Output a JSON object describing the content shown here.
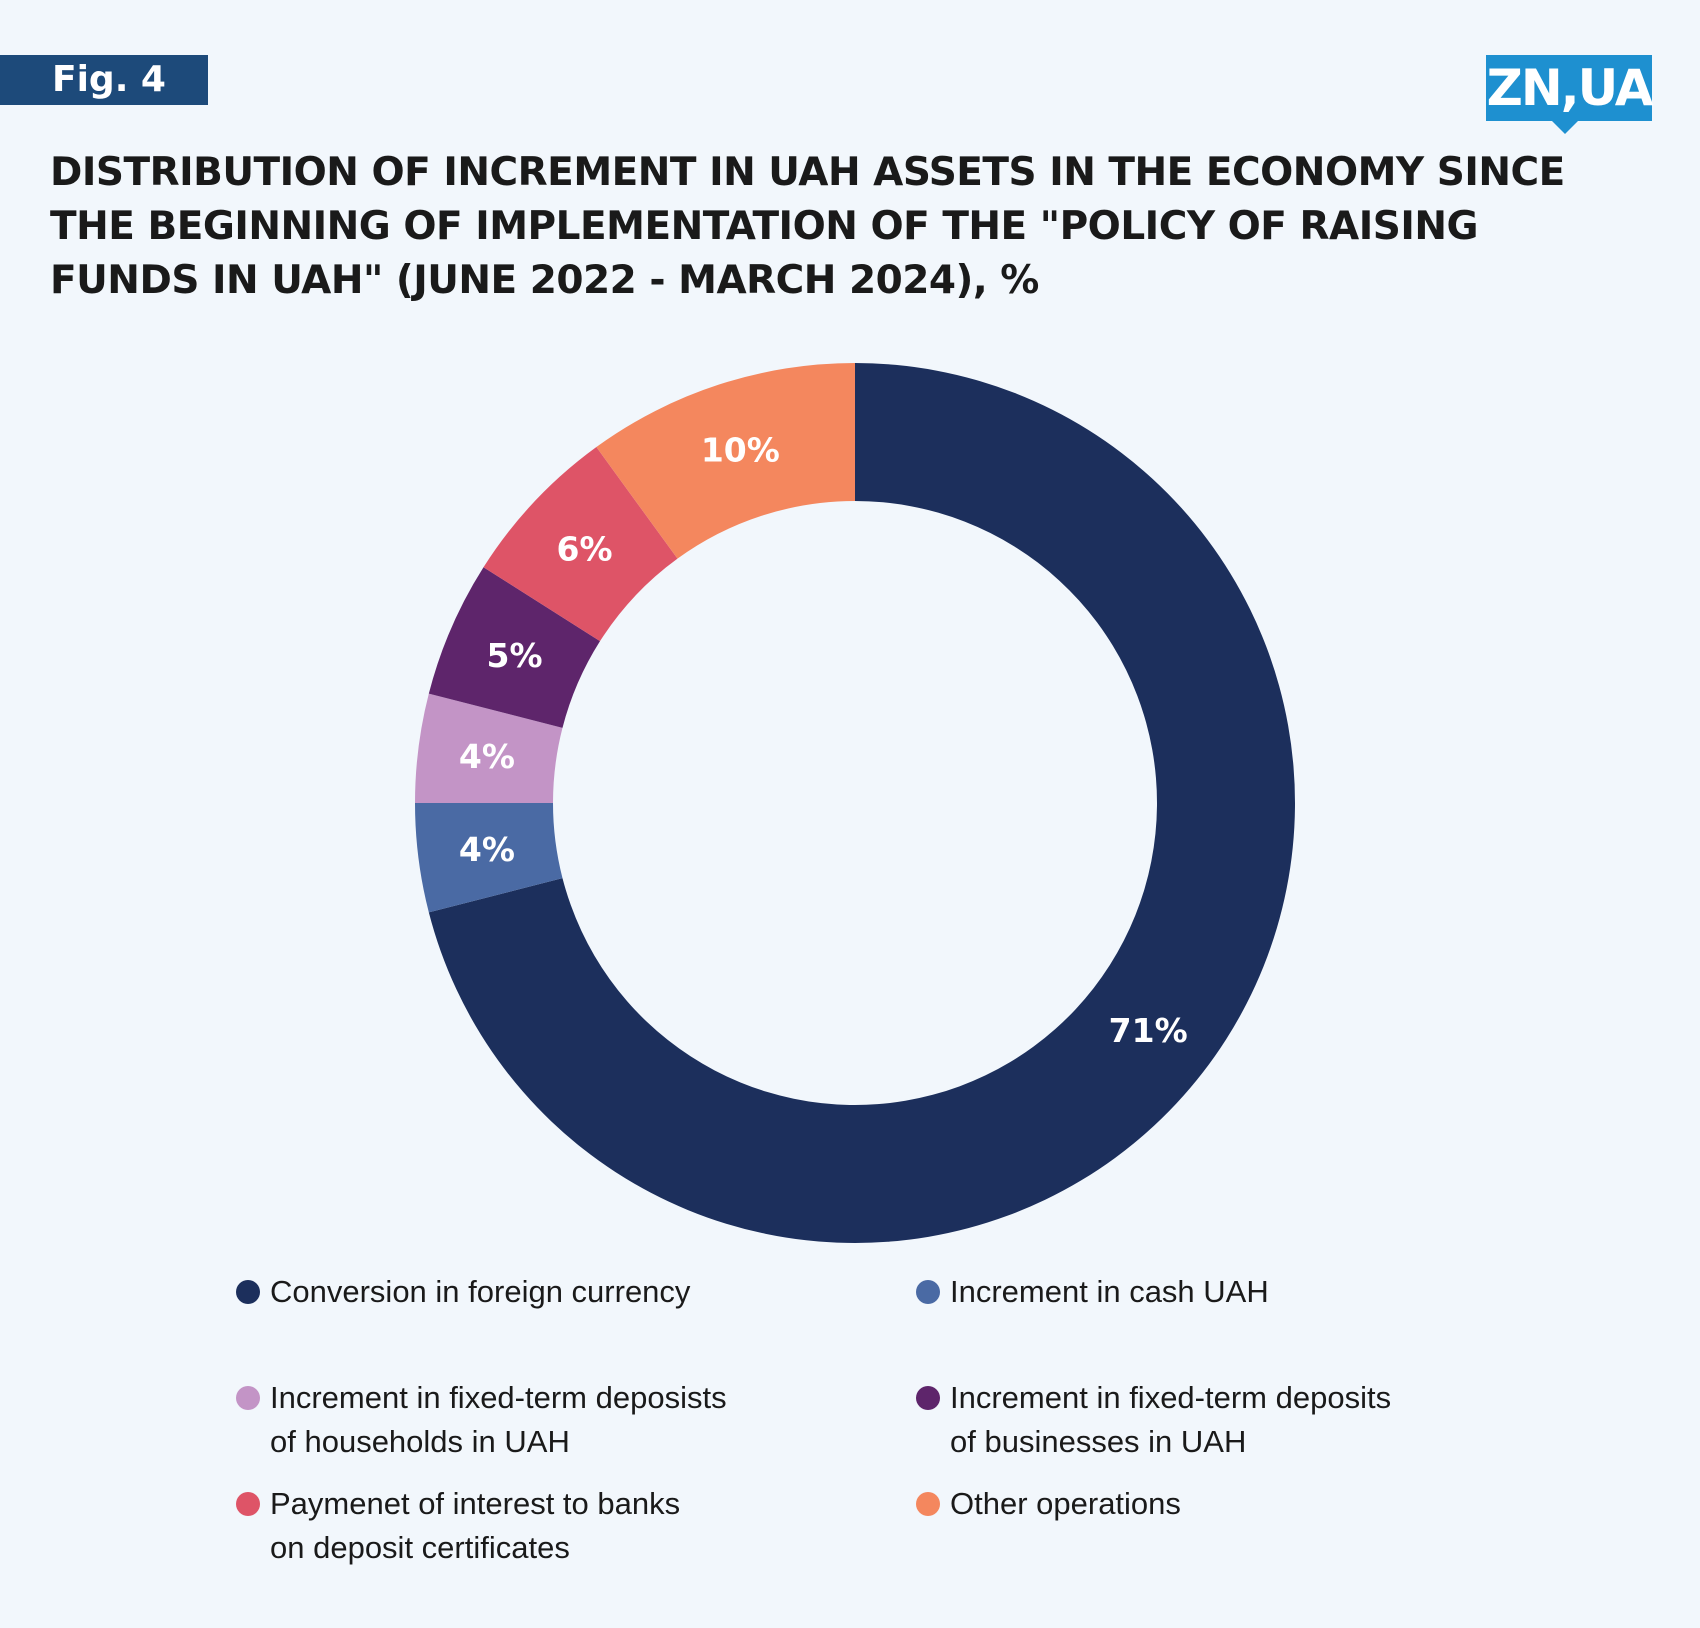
{
  "header": {
    "fig_label": "Fig. 4",
    "logo_text": "ZN,UA"
  },
  "chart_data": {
    "type": "pie",
    "donut": true,
    "title": "DISTRIBUTION OF INCREMENT IN UAH ASSETS IN THE ECONOMY SINCE THE BEGINNING OF IMPLEMENTATION OF THE \"POLICY OF RAISING FUNDS IN UAH\" (JUNE 2022 - MARCH 2024), %",
    "unit": "%",
    "legend_placement": "bottom",
    "slices": [
      {
        "name": "Conversion in foreign currency",
        "value": 71,
        "label": "71%",
        "color": "#1c2f5c"
      },
      {
        "name": "Increment in cash UAH",
        "value": 4,
        "label": "4%",
        "color": "#4a6aa4"
      },
      {
        "name": "Increment in fixed-term deposists\nof households in UAH",
        "value": 4,
        "label": "4%",
        "color": "#c394c6"
      },
      {
        "name": "Increment in fixed-term deposits\nof businesses in UAH",
        "value": 5,
        "label": "5%",
        "color": "#5e256b"
      },
      {
        "name": "Paymenet of interest to banks\non deposit certificates",
        "value": 6,
        "label": "6%",
        "color": "#de5467"
      },
      {
        "name": "Other operations",
        "value": 10,
        "label": "10%",
        "color": "#f4875e"
      }
    ]
  }
}
